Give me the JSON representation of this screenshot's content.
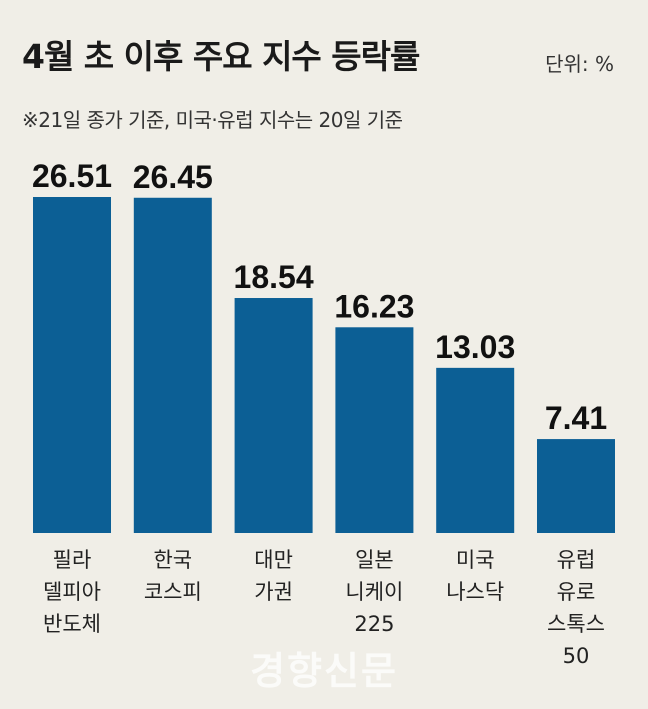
{
  "header": {
    "title": "4월 초 이후 주요 지수 등락률",
    "unit": "단위: %",
    "note": "※21일 종가 기준, 미국·유럽 지수는 20일 기준"
  },
  "watermark": "경향신문",
  "colors": {
    "bar": "#0c5f95",
    "background": "#f0eee7"
  },
  "chart_data": {
    "type": "bar",
    "categories": [
      "필라 델피아 반도체",
      "한국 코스피",
      "대만 가권",
      "일본 니케이 225",
      "미국 나스닥",
      "유럽 유로 스톡스 50"
    ],
    "category_lines": [
      [
        "필라",
        "델피아",
        "반도체"
      ],
      [
        "한국",
        "코스피"
      ],
      [
        "대만",
        "가권"
      ],
      [
        "일본",
        "니케이",
        "225"
      ],
      [
        "미국",
        "나스닥"
      ],
      [
        "유럽",
        "유로",
        "스톡스",
        "50"
      ]
    ],
    "values": [
      26.51,
      26.45,
      18.54,
      16.23,
      13.03,
      7.41
    ],
    "value_labels": [
      "26.51",
      "26.45",
      "18.54",
      "16.23",
      "13.03",
      "7.41"
    ],
    "ylim": [
      0,
      26.51
    ],
    "grid": false
  }
}
